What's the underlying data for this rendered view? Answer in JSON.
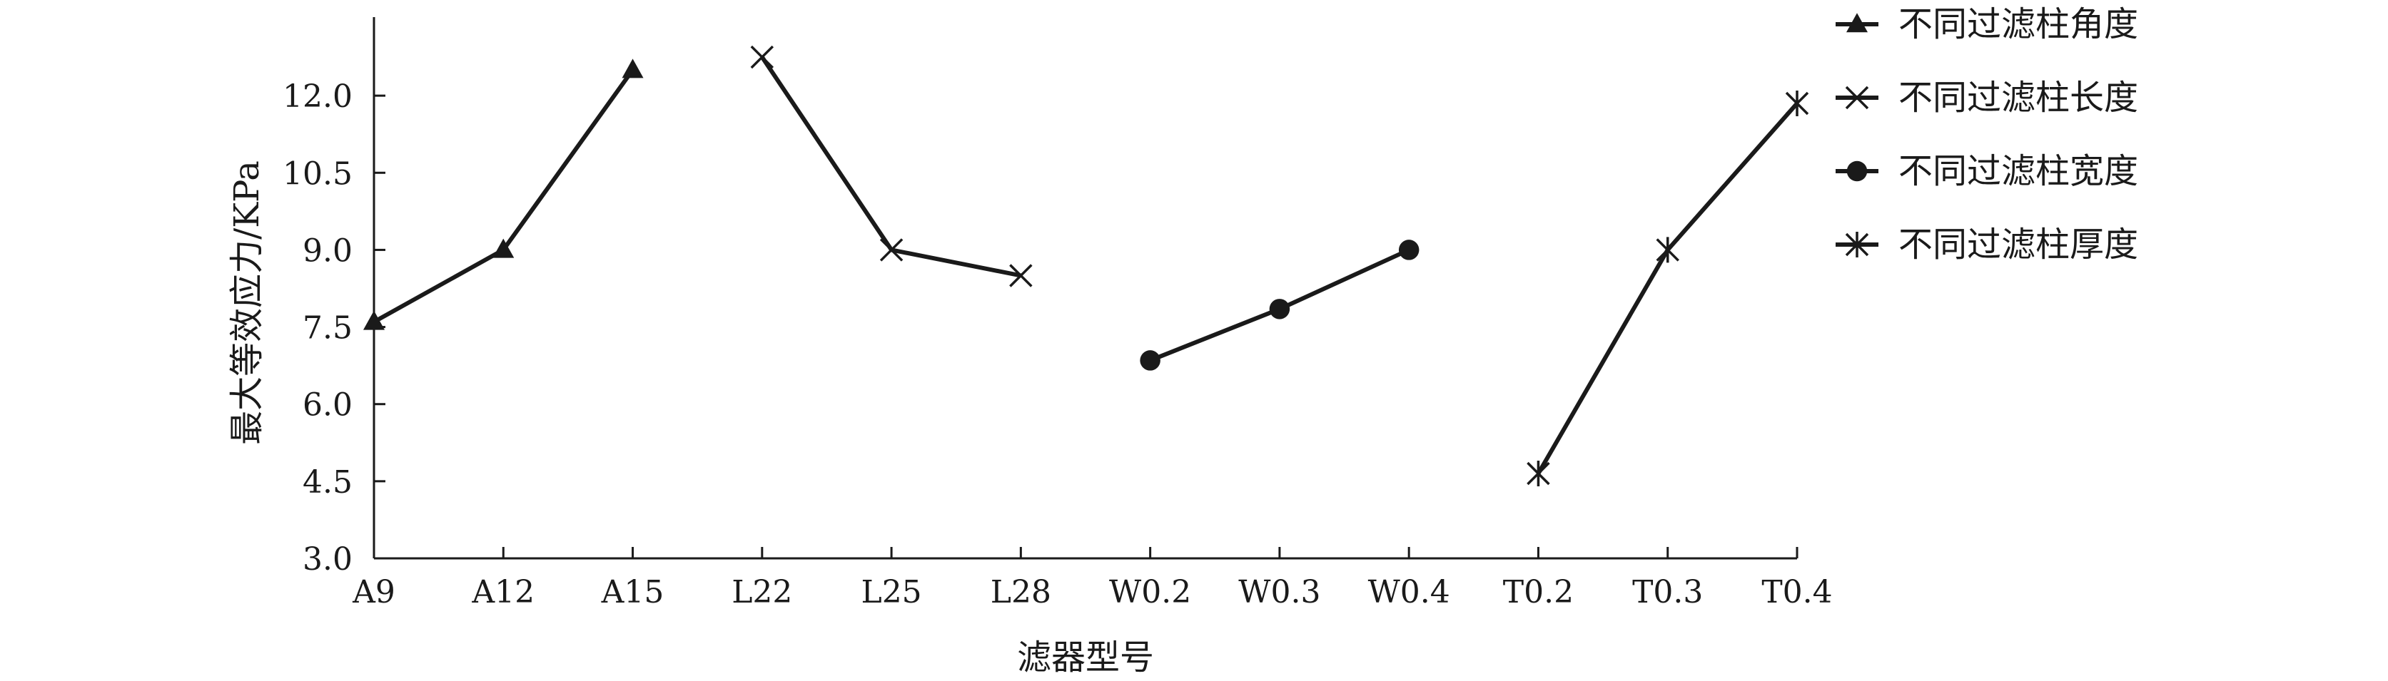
{
  "chart_data": {
    "type": "line",
    "title": "",
    "xlabel": "滤器型号",
    "ylabel": "最大等效应力/KPa",
    "ylim": [
      3.0,
      13.5
    ],
    "yticks": [
      "3.0",
      "4.5",
      "6.0",
      "7.5",
      "9.0",
      "10.5",
      "12.0"
    ],
    "categories": [
      "A9",
      "A12",
      "A15",
      "L22",
      "L25",
      "L28",
      "W0.2",
      "W0.3",
      "W0.4",
      "T0.2",
      "T0.3",
      "T0.4"
    ],
    "grid": false,
    "legend_position": "top-right",
    "series": [
      {
        "name": "不同过滤柱角度",
        "marker": "triangle",
        "values": [
          7.6,
          9.0,
          12.5,
          null,
          null,
          null,
          null,
          null,
          null,
          null,
          null,
          null
        ]
      },
      {
        "name": "不同过滤柱长度",
        "marker": "x",
        "values": [
          null,
          null,
          null,
          12.75,
          9.0,
          8.5,
          null,
          null,
          null,
          null,
          null,
          null
        ]
      },
      {
        "name": "不同过滤柱宽度",
        "marker": "circle",
        "values": [
          null,
          null,
          null,
          null,
          null,
          null,
          6.85,
          7.85,
          9.0,
          null,
          null,
          null
        ]
      },
      {
        "name": "不同过滤柱厚度",
        "marker": "asterisk",
        "values": [
          null,
          null,
          null,
          null,
          null,
          null,
          null,
          null,
          null,
          4.65,
          9.0,
          11.85
        ]
      }
    ],
    "colors": {
      "line": "#1a1a1a",
      "axis": "#1a1a1a"
    }
  }
}
